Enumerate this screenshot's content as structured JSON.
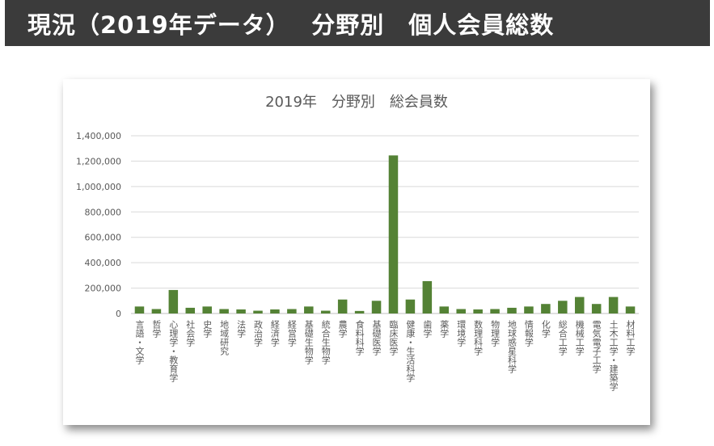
{
  "header": {
    "title": "現況（2019年データ）　 分野別　個人会員総数"
  },
  "chart_data": {
    "type": "bar",
    "title": "2019年　分野別　総会員数",
    "xlabel": "",
    "ylabel": "",
    "ylim": [
      0,
      1400000
    ],
    "yticks": [
      0,
      200000,
      400000,
      600000,
      800000,
      1000000,
      1200000,
      1400000
    ],
    "ytick_labels": [
      "0",
      "200,000",
      "400,000",
      "600,000",
      "800,000",
      "1,000,000",
      "1,200,000",
      "1,400,000"
    ],
    "grid": true,
    "bar_color": "#548235",
    "categories": [
      "言語・文学",
      "哲学",
      "心理学・教育学",
      "社会学",
      "史学",
      "地域研究",
      "法学",
      "政治学",
      "経済学",
      "経営学",
      "基礎生物学",
      "統合生物学",
      "農学",
      "食料科学",
      "基礎医学",
      "臨床医学",
      "健康・生活科学",
      "歯学",
      "薬学",
      "環境学",
      "数理科学",
      "物理学",
      "地球惑星科学",
      "情報学",
      "化学",
      "総合工学",
      "機械工学",
      "電気電子工学",
      "土木工学・建築学",
      "材料工学"
    ],
    "values": [
      55000,
      35000,
      185000,
      45000,
      55000,
      35000,
      32000,
      22000,
      32000,
      35000,
      55000,
      22000,
      110000,
      20000,
      100000,
      1245000,
      110000,
      255000,
      55000,
      35000,
      32000,
      35000,
      45000,
      55000,
      75000,
      100000,
      130000,
      75000,
      130000,
      55000
    ]
  }
}
